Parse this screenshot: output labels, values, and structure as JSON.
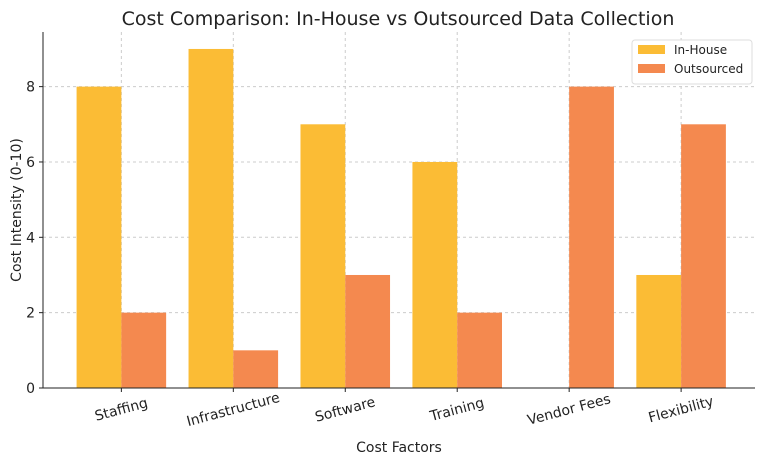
{
  "chart_data": {
    "type": "bar",
    "title": "Cost Comparison: In-House vs Outsourced Data Collection",
    "xlabel": "Cost Factors",
    "ylabel": "Cost Intensity (0-10)",
    "categories": [
      "Staffing",
      "Infrastructure",
      "Software",
      "Training",
      "Vendor Fees",
      "Flexibility"
    ],
    "series": [
      {
        "name": "In-House",
        "values": [
          8,
          9,
          7,
          6,
          0,
          3
        ],
        "color": "#FBBC35"
      },
      {
        "name": "Outsourced",
        "values": [
          2,
          1,
          3,
          2,
          8,
          7
        ],
        "color": "#F4894F"
      }
    ],
    "ylim": [
      0,
      9.45
    ],
    "yticks": [
      0,
      2,
      4,
      6,
      8
    ],
    "grid": true,
    "legend": "top-right"
  }
}
